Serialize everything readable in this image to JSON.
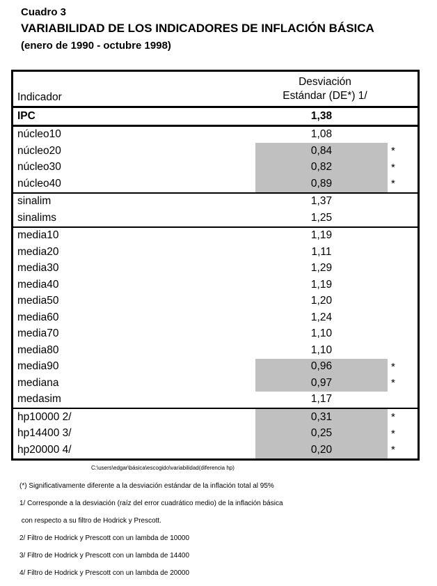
{
  "page": {
    "heading": {
      "label": "Cuadro 3",
      "title": "VARIABILIDAD DE LOS INDICADORES DE INFLACIÓN BÁSICA",
      "period": "(enero de 1990 - octubre 1998)"
    },
    "table": {
      "header": {
        "indicator": "Indicador",
        "value_line1": "Desviación",
        "value_line2": "Estándar (DE*) 1/"
      },
      "shading_color": "#c0c0c0",
      "border_color": "#000000",
      "groups": [
        {
          "name": "ipc",
          "thick_separator": true,
          "rows": [
            {
              "indicator": "IPC",
              "value": "1,38",
              "bold": true,
              "shaded": false,
              "star": ""
            }
          ]
        },
        {
          "name": "nucleo",
          "rows": [
            {
              "indicator": "núcleo10",
              "value": "1,08",
              "bold": false,
              "shaded": false,
              "star": ""
            },
            {
              "indicator": "núcleo20",
              "value": "0,84",
              "bold": false,
              "shaded": true,
              "star": "*"
            },
            {
              "indicator": "núcleo30",
              "value": "0,82",
              "bold": false,
              "shaded": true,
              "star": "*"
            },
            {
              "indicator": "núcleo40",
              "value": "0,89",
              "bold": false,
              "shaded": true,
              "star": "*"
            }
          ]
        },
        {
          "name": "sinalim",
          "rows": [
            {
              "indicator": "sinalim",
              "value": "1,37",
              "bold": false,
              "shaded": false,
              "star": ""
            },
            {
              "indicator": "sinalims",
              "value": "1,25",
              "bold": false,
              "shaded": false,
              "star": ""
            }
          ]
        },
        {
          "name": "media",
          "rows": [
            {
              "indicator": "media10",
              "value": "1,19",
              "bold": false,
              "shaded": false,
              "star": ""
            },
            {
              "indicator": "media20",
              "value": "1,11",
              "bold": false,
              "shaded": false,
              "star": ""
            },
            {
              "indicator": "media30",
              "value": "1,29",
              "bold": false,
              "shaded": false,
              "star": ""
            },
            {
              "indicator": "media40",
              "value": "1,19",
              "bold": false,
              "shaded": false,
              "star": ""
            },
            {
              "indicator": "media50",
              "value": "1,20",
              "bold": false,
              "shaded": false,
              "star": ""
            },
            {
              "indicator": "media60",
              "value": "1,24",
              "bold": false,
              "shaded": false,
              "star": ""
            },
            {
              "indicator": "media70",
              "value": "1,10",
              "bold": false,
              "shaded": false,
              "star": ""
            },
            {
              "indicator": "media80",
              "value": "1,10",
              "bold": false,
              "shaded": false,
              "star": ""
            },
            {
              "indicator": "media90",
              "value": "0,96",
              "bold": false,
              "shaded": true,
              "star": "*"
            },
            {
              "indicator": "mediana",
              "value": "0,97",
              "bold": false,
              "shaded": true,
              "star": "*"
            },
            {
              "indicator": "medasim",
              "value": "1,17",
              "bold": false,
              "shaded": false,
              "star": ""
            }
          ]
        },
        {
          "name": "hp",
          "rows": [
            {
              "indicator": "hp10000 2/",
              "value": "0,31",
              "bold": false,
              "shaded": true,
              "star": "*"
            },
            {
              "indicator": "hp14400 3/",
              "value": "0,25",
              "bold": false,
              "shaded": true,
              "star": "*"
            },
            {
              "indicator": "hp20000 4/",
              "value": "0,20",
              "bold": false,
              "shaded": true,
              "star": "*"
            }
          ]
        }
      ]
    },
    "caption": "C:\\users\\edgar\\básica\\escogido\\variabilidad(diferencia hp)",
    "footnotes": [
      "(*) Significativamente diferente a la desviación estándar de la inflación total al 95%",
      "1/ Corresponde a la desviación (raíz del error cuadrático medio) de la inflación básica",
      " con respecto a su filtro de Hodrick y Prescott.",
      "2/ Filtro de Hodrick y Prescott con un lambda de 10000",
      "3/ Filtro de Hodrick y Prescott con un lambda de 14400",
      "4/ Filtro de Hodrick y Prescott con un lambda de 20000"
    ]
  }
}
